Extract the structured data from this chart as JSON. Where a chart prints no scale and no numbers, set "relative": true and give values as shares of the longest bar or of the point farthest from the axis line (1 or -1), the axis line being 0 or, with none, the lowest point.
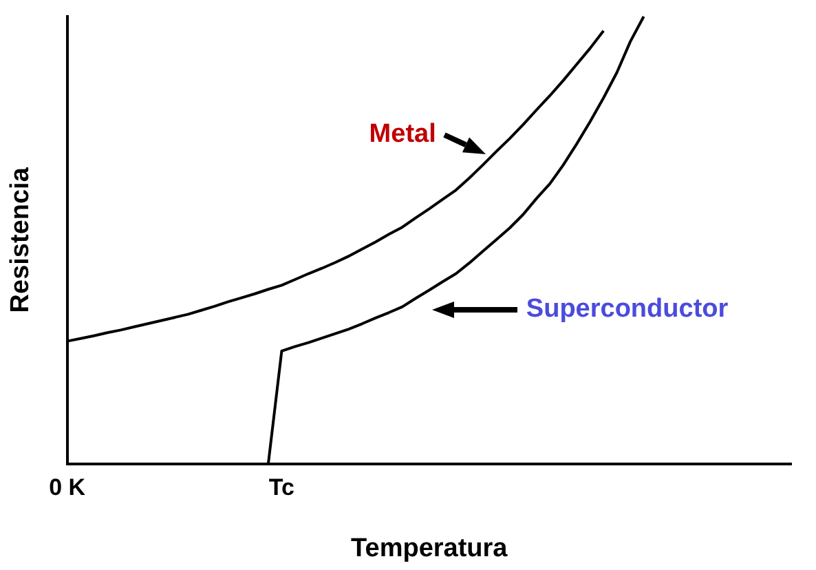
{
  "chart_data": {
    "type": "line",
    "xlabel": "Temperatura",
    "ylabel": "Resistencia",
    "relative": true,
    "categories": [
      "0 K",
      null,
      null,
      null,
      null,
      null,
      null,
      null,
      null,
      null,
      null,
      null,
      null,
      null,
      null,
      null,
      "Tc",
      null,
      null,
      null,
      null,
      null,
      null,
      null,
      null,
      null,
      null,
      null,
      null,
      null,
      null,
      null,
      null,
      null,
      null,
      null,
      null,
      null,
      null,
      null,
      null,
      null,
      null,
      null,
      null,
      null,
      null,
      null,
      null,
      null,
      null,
      null,
      null,
      null,
      null
    ],
    "series": [
      {
        "name": "Metal",
        "color": "#000000",
        "values": [
          0.274,
          0.28,
          0.286,
          0.293,
          0.299,
          0.306,
          0.313,
          0.32,
          0.327,
          0.334,
          0.343,
          0.352,
          0.362,
          0.371,
          0.38,
          0.39,
          0.399,
          0.412,
          0.425,
          0.437,
          0.45,
          0.464,
          0.48,
          0.496,
          0.513,
          0.529,
          0.55,
          0.57,
          0.591,
          0.612,
          0.639,
          0.668,
          0.698,
          0.727,
          0.758,
          0.791,
          0.823,
          0.857,
          0.893,
          0.929,
          0.968,
          null,
          null,
          null,
          null,
          null,
          null,
          null,
          null,
          null,
          null,
          null,
          null,
          null,
          null
        ]
      },
      {
        "name": "Superconductor",
        "color": "#000000",
        "values": [
          null,
          null,
          null,
          null,
          null,
          null,
          null,
          null,
          null,
          null,
          null,
          null,
          null,
          null,
          null,
          0,
          0.252,
          0.262,
          0.271,
          0.281,
          0.291,
          0.301,
          0.313,
          0.326,
          0.338,
          0.351,
          0.37,
          0.388,
          0.407,
          0.425,
          0.449,
          0.475,
          0.501,
          0.527,
          0.557,
          0.593,
          0.626,
          0.668,
          0.715,
          0.765,
          0.818,
          0.875,
          0.944,
          1.0,
          null,
          null,
          null,
          null,
          null,
          null,
          null,
          null,
          null,
          null,
          null
        ]
      }
    ]
  }
}
